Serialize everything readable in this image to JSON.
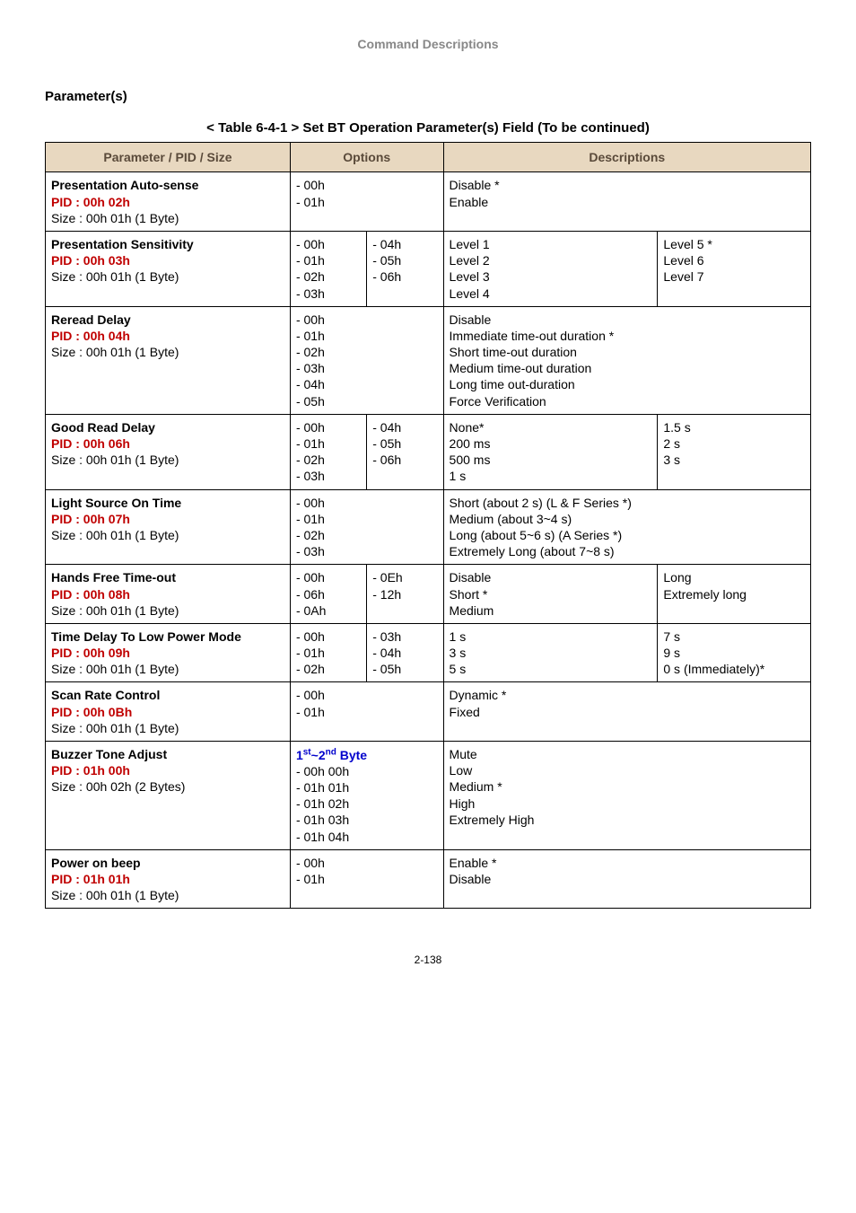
{
  "header": "Command Descriptions",
  "section_heading": "Parameter(s)",
  "table_caption": "< Table 6-4-1 > Set BT Operation Parameter(s) Field (To be continued)",
  "columns": {
    "param": "Parameter / PID / Size",
    "options": "Options",
    "descriptions": "Descriptions"
  },
  "rows": [
    {
      "title": "Presentation Auto-sense",
      "pid": "PID : 00h 02h",
      "size": "Size : 00h 01h (1 Byte)",
      "opt1": "- 00h\n- 01h",
      "opt2": "",
      "desc1": "Disable *\nEnable",
      "desc2": "",
      "opt_colspan": 2,
      "desc_colspan": 2
    },
    {
      "title": "Presentation Sensitivity",
      "pid": "PID : 00h 03h",
      "size": "Size : 00h 01h (1 Byte)",
      "opt1": "- 00h\n- 01h\n- 02h\n- 03h",
      "opt2": "- 04h\n- 05h\n- 06h",
      "desc1": "Level 1\nLevel 2\nLevel 3\nLevel 4",
      "desc2": "Level 5 *\nLevel 6\nLevel 7"
    },
    {
      "title": "Reread Delay",
      "pid": "PID : 00h 04h",
      "size": "Size : 00h 01h (1 Byte)",
      "opt1": "- 00h\n- 01h\n- 02h\n- 03h\n- 04h\n- 05h",
      "opt2": "",
      "desc1": "Disable\nImmediate time-out duration *\nShort time-out duration\nMedium time-out duration\nLong time out-duration\nForce Verification",
      "desc2": "",
      "opt_colspan": 2,
      "desc_colspan": 2
    },
    {
      "title": "Good Read Delay",
      "pid": "PID : 00h 06h",
      "size": "Size : 00h 01h (1 Byte)",
      "opt1": "- 00h\n- 01h\n- 02h\n- 03h",
      "opt2": "- 04h\n- 05h\n- 06h",
      "desc1": "None*\n200 ms\n500 ms\n1 s",
      "desc2": "1.5 s\n2 s\n3 s"
    },
    {
      "title": "Light Source On Time",
      "pid": "PID : 00h 07h",
      "size": "Size : 00h 01h (1 Byte)",
      "opt1": "- 00h\n- 01h\n- 02h\n- 03h",
      "opt2": "",
      "desc1": "Short (about 2 s) (L & F Series *)\nMedium (about 3~4 s)\nLong (about 5~6 s) (A Series *)\nExtremely Long (about 7~8 s)",
      "desc2": "",
      "opt_colspan": 2,
      "desc_colspan": 2
    },
    {
      "title": "Hands Free Time-out",
      "pid": "PID : 00h 08h",
      "size": "Size : 00h 01h (1 Byte)",
      "opt1": "- 00h\n- 06h\n- 0Ah",
      "opt2": "- 0Eh\n- 12h",
      "desc1": "Disable\nShort *\nMedium",
      "desc2": "Long\nExtremely long"
    },
    {
      "title": "Time Delay To Low Power Mode",
      "pid": "PID : 00h 09h",
      "size": "Size : 00h 01h (1 Byte)",
      "opt1": "- 00h\n- 01h\n- 02h",
      "opt2": "- 03h\n- 04h\n- 05h",
      "desc1": "1 s\n3 s\n5 s",
      "desc2": "7 s\n9 s\n0 s (Immediately)*"
    },
    {
      "title": "Scan Rate Control",
      "pid": "PID : 00h 0Bh",
      "size": "Size : 00h 01h (1 Byte)",
      "opt1": "- 00h\n- 01h",
      "opt2": "",
      "desc1": "Dynamic *\nFixed",
      "desc2": "",
      "opt_colspan": 2,
      "desc_colspan": 2
    },
    {
      "title": "Buzzer Tone Adjust",
      "pid": "PID : 01h 00h",
      "size": "Size : 00h 02h (2 Bytes)",
      "opt_html": "byte",
      "opt1": "- 00h 00h\n- 01h 01h\n- 01h 02h\n- 01h 03h\n- 01h 04h",
      "opt2": "",
      "desc1": "Mute\nLow\nMedium *\nHigh\nExtremely High",
      "desc2": "",
      "opt_colspan": 2,
      "desc_colspan": 2
    },
    {
      "title": "Power on beep",
      "pid": "PID : 01h 01h",
      "size": "Size : 00h 01h (1 Byte)",
      "opt1": "- 00h\n- 01h",
      "opt2": "",
      "desc1": "Enable *\nDisable",
      "desc2": "",
      "opt_colspan": 2,
      "desc_colspan": 2
    }
  ],
  "byte_label_prefix": "1",
  "byte_label_mid": "~2",
  "byte_label_suffix": " Byte",
  "page_number": "2-138"
}
